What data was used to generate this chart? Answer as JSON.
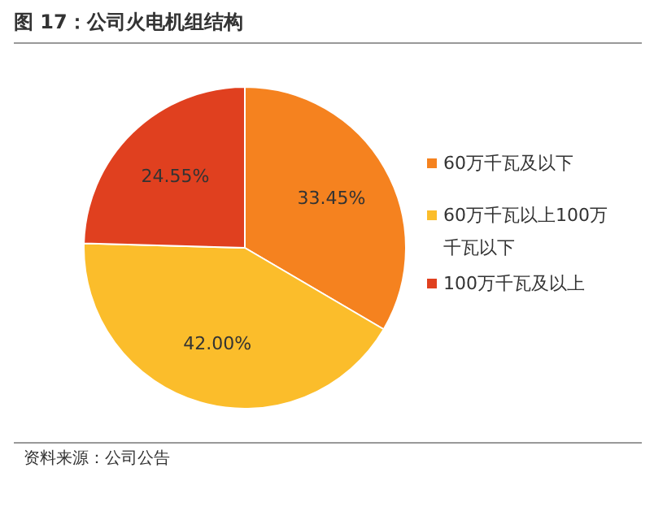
{
  "chart_data": {
    "type": "pie",
    "title": "图 17：公司火电机组结构",
    "categories": [
      "60万千瓦及以下",
      "60万千瓦以上100万千瓦以下",
      "100万千瓦及以上"
    ],
    "values": [
      33.45,
      42.0,
      24.55
    ],
    "colors": [
      "#f5821f",
      "#fbbd2b",
      "#e0401f"
    ],
    "value_labels": [
      "33.45%",
      "42.00%",
      "24.55%"
    ],
    "legend": "right",
    "annotations": [
      "资料来源：公司公告"
    ]
  }
}
